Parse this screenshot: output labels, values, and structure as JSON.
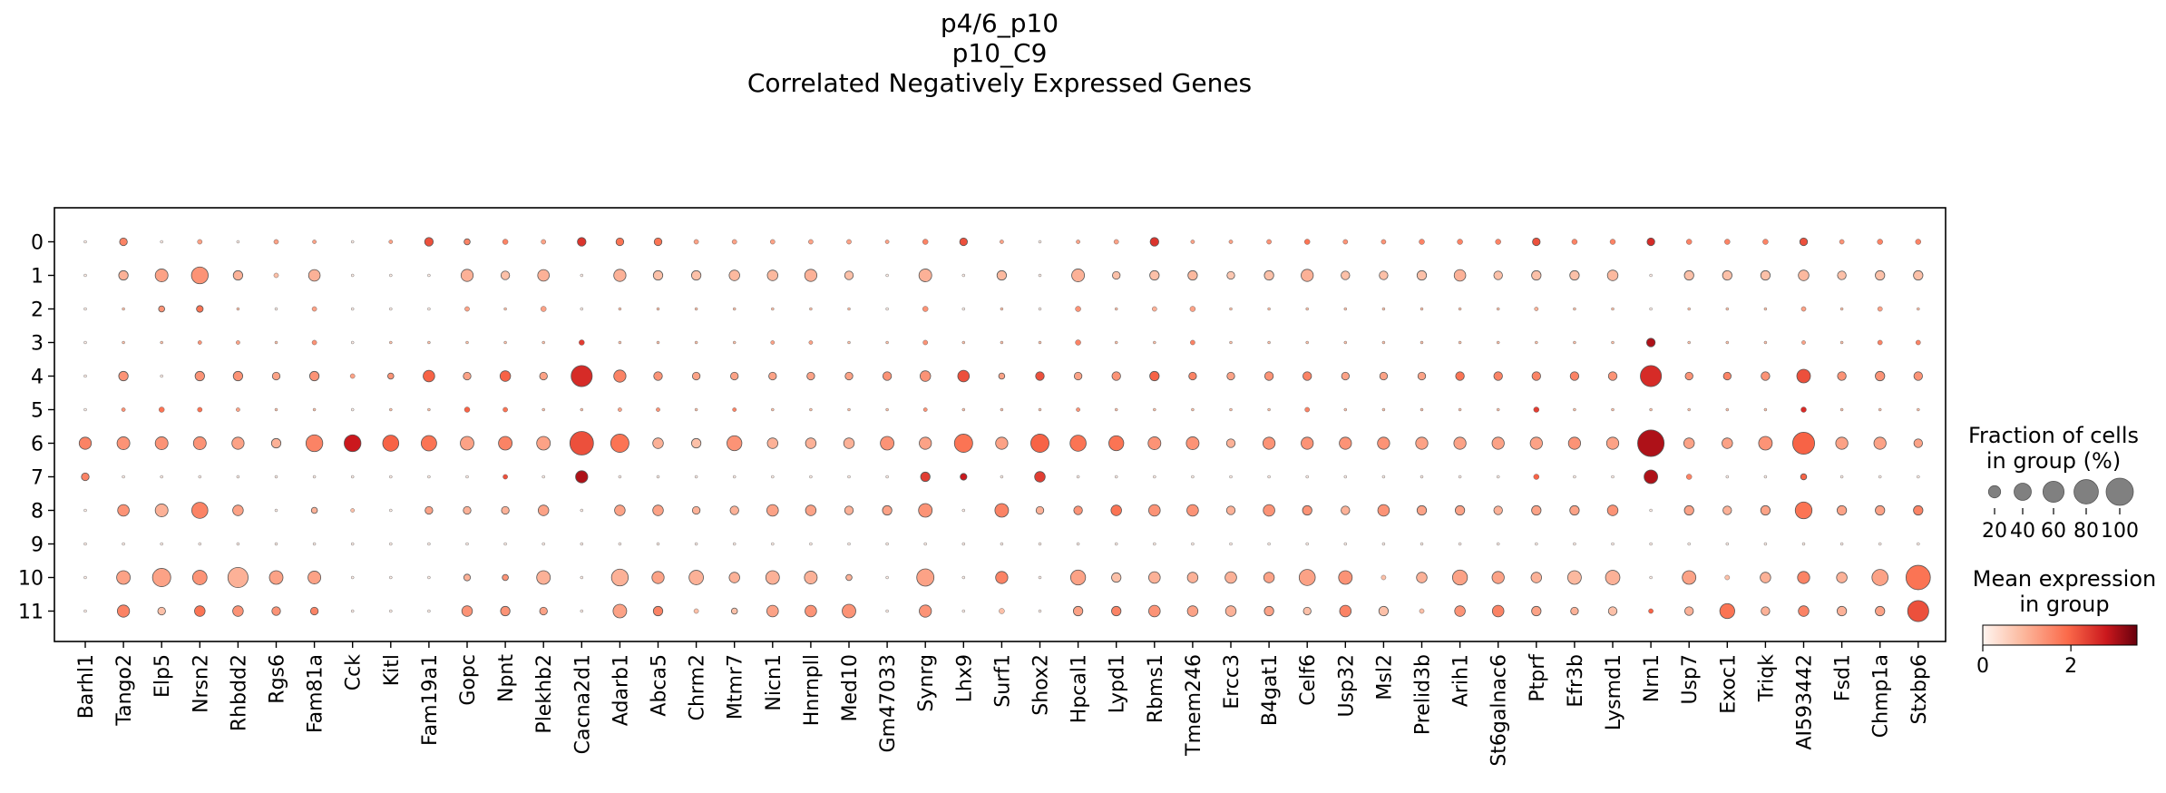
{
  "chart_data": {
    "type": "dotplot",
    "title": [
      "p4/6_p10",
      "p10_C9",
      "Correlated Negatively Expressed Genes"
    ],
    "genes": [
      "Barhl1",
      "Tango2",
      "Elp5",
      "Nrsn2",
      "Rhbdd2",
      "Rgs6",
      "Fam81a",
      "Cck",
      "Kitl",
      "Fam19a1",
      "Gopc",
      "Npnt",
      "Plekhb2",
      "Cacna2d1",
      "Adarb1",
      "Abca5",
      "Chrm2",
      "Mtmr7",
      "Nicn1",
      "Hnrnpll",
      "Med10",
      "Gm47033",
      "Synrg",
      "Lhx9",
      "Surf1",
      "Shox2",
      "Hpcal1",
      "Lypd1",
      "Rbms1",
      "Tmem246",
      "Ercc3",
      "B4gat1",
      "Celf6",
      "Usp32",
      "Msl2",
      "Prelid3b",
      "Arih1",
      "St6galnac6",
      "Ptprf",
      "Efr3b",
      "Lysmd1",
      "Nrn1",
      "Usp7",
      "Exoc1",
      "Triqk",
      "AI593442",
      "Fsd1",
      "Chmp1a",
      "Stxbp6"
    ],
    "groups": [
      "0",
      "1",
      "2",
      "3",
      "4",
      "5",
      "6",
      "7",
      "8",
      "9",
      "10",
      "11"
    ],
    "fraction_percent": [
      [
        1,
        8,
        1,
        3,
        1,
        3,
        2,
        1,
        2,
        10,
        5,
        4,
        3,
        10,
        8,
        8,
        3,
        3,
        3,
        3,
        3,
        2,
        4,
        8,
        2,
        1,
        2,
        3,
        10,
        2,
        2,
        3,
        4,
        3,
        3,
        4,
        4,
        4,
        8,
        4,
        4,
        8,
        4,
        4,
        4,
        8,
        3,
        4,
        4
      ],
      [
        1,
        12,
        22,
        38,
        12,
        3,
        18,
        1,
        1,
        1,
        20,
        10,
        18,
        1,
        20,
        12,
        12,
        15,
        15,
        20,
        10,
        1,
        22,
        1,
        12,
        1,
        22,
        8,
        12,
        12,
        8,
        12,
        20,
        10,
        10,
        12,
        18,
        10,
        12,
        12,
        15,
        1,
        12,
        12,
        12,
        15,
        10,
        12,
        12
      ],
      [
        1,
        1,
        5,
        6,
        1,
        1,
        3,
        1,
        1,
        1,
        3,
        1,
        4,
        1,
        1,
        1,
        1,
        1,
        1,
        1,
        1,
        1,
        4,
        1,
        1,
        1,
        4,
        1,
        3,
        4,
        1,
        1,
        1,
        1,
        1,
        1,
        1,
        1,
        2,
        1,
        1,
        1,
        1,
        1,
        1,
        3,
        1,
        3,
        1
      ],
      [
        1,
        1,
        1,
        2,
        2,
        1,
        3,
        1,
        1,
        1,
        1,
        1,
        1,
        4,
        1,
        1,
        1,
        1,
        2,
        2,
        1,
        1,
        3,
        1,
        1,
        1,
        4,
        1,
        1,
        3,
        1,
        1,
        1,
        1,
        1,
        1,
        1,
        1,
        1,
        1,
        1,
        10,
        1,
        1,
        1,
        2,
        1,
        3,
        3
      ],
      [
        1,
        12,
        1,
        12,
        12,
        8,
        12,
        3,
        5,
        18,
        8,
        15,
        8,
        60,
        20,
        10,
        8,
        8,
        8,
        8,
        8,
        10,
        15,
        18,
        5,
        10,
        8,
        10,
        12,
        8,
        8,
        10,
        10,
        8,
        8,
        8,
        10,
        10,
        10,
        10,
        10,
        60,
        8,
        8,
        10,
        25,
        10,
        12,
        10
      ],
      [
        1,
        2,
        4,
        3,
        2,
        1,
        1,
        1,
        1,
        1,
        4,
        3,
        1,
        1,
        2,
        2,
        1,
        2,
        1,
        1,
        1,
        1,
        2,
        1,
        1,
        1,
        2,
        1,
        1,
        1,
        1,
        1,
        3,
        1,
        1,
        1,
        1,
        1,
        4,
        1,
        1,
        1,
        1,
        1,
        1,
        4,
        1,
        1,
        1
      ],
      [
        20,
        22,
        22,
        22,
        20,
        12,
        38,
        38,
        35,
        32,
        25,
        25,
        25,
        75,
        45,
        15,
        12,
        30,
        15,
        15,
        15,
        25,
        20,
        45,
        20,
        45,
        35,
        30,
        22,
        22,
        10,
        20,
        20,
        20,
        20,
        20,
        20,
        20,
        20,
        20,
        20,
        95,
        15,
        15,
        25,
        65,
        20,
        20,
        10
      ],
      [
        8,
        1,
        1,
        1,
        1,
        1,
        1,
        1,
        1,
        1,
        1,
        3,
        1,
        20,
        1,
        1,
        1,
        1,
        1,
        1,
        1,
        1,
        12,
        6,
        1,
        15,
        1,
        1,
        1,
        1,
        1,
        1,
        1,
        1,
        1,
        1,
        1,
        1,
        4,
        1,
        1,
        25,
        4,
        1,
        1,
        5,
        1,
        1,
        1
      ],
      [
        1,
        18,
        22,
        35,
        15,
        1,
        5,
        2,
        1,
        8,
        8,
        8,
        15,
        1,
        15,
        15,
        8,
        10,
        18,
        15,
        10,
        12,
        25,
        1,
        25,
        8,
        10,
        15,
        18,
        18,
        10,
        18,
        12,
        10,
        18,
        12,
        12,
        10,
        12,
        12,
        15,
        1,
        12,
        10,
        12,
        38,
        12,
        12,
        12
      ],
      [
        1,
        1,
        1,
        1,
        1,
        1,
        1,
        1,
        1,
        1,
        1,
        1,
        1,
        1,
        1,
        1,
        1,
        1,
        1,
        1,
        1,
        1,
        1,
        1,
        1,
        1,
        1,
        1,
        1,
        1,
        1,
        1,
        1,
        1,
        1,
        1,
        1,
        1,
        1,
        1,
        1,
        1,
        1,
        1,
        1,
        1,
        1,
        1,
        1
      ],
      [
        1,
        25,
        45,
        28,
        55,
        25,
        22,
        1,
        1,
        1,
        6,
        5,
        25,
        1,
        38,
        20,
        28,
        15,
        25,
        22,
        5,
        1,
        40,
        1,
        20,
        1,
        30,
        12,
        18,
        15,
        18,
        15,
        35,
        25,
        3,
        15,
        30,
        20,
        15,
        25,
        28,
        1,
        25,
        3,
        15,
        20,
        15,
        35,
        80
      ],
      [
        1,
        20,
        8,
        15,
        15,
        10,
        8,
        1,
        1,
        1,
        15,
        12,
        8,
        1,
        25,
        12,
        3,
        5,
        18,
        18,
        25,
        1,
        20,
        1,
        4,
        1,
        12,
        12,
        18,
        15,
        15,
        12,
        8,
        18,
        12,
        3,
        15,
        18,
        12,
        8,
        10,
        3,
        10,
        30,
        10,
        15,
        12,
        12,
        60
      ]
    ],
    "mean_expression": [
      [
        0.1,
        1.6,
        0.1,
        1.2,
        0.1,
        1.2,
        1.2,
        0.1,
        1.2,
        2.2,
        1.6,
        1.6,
        1.2,
        2.5,
        1.8,
        1.8,
        1.2,
        1.2,
        1.2,
        1.2,
        1.2,
        1.2,
        1.6,
        2.2,
        1.2,
        0.1,
        1.2,
        1.2,
        2.5,
        1.2,
        1.2,
        1.4,
        1.8,
        1.4,
        1.4,
        1.6,
        1.6,
        1.6,
        2.2,
        1.6,
        1.6,
        2.6,
        1.6,
        1.6,
        1.6,
        2.2,
        1.4,
        1.6,
        1.6
      ],
      [
        0.1,
        1.0,
        1.2,
        1.4,
        1.0,
        0.8,
        1.0,
        0.1,
        0.1,
        0.1,
        1.0,
        0.8,
        1.0,
        0.1,
        1.0,
        0.8,
        0.8,
        0.9,
        0.9,
        1.0,
        0.8,
        0.1,
        1.0,
        0.1,
        0.9,
        0.1,
        1.0,
        0.8,
        0.8,
        0.9,
        0.7,
        0.8,
        1.0,
        0.8,
        0.8,
        0.8,
        1.0,
        0.8,
        0.8,
        0.8,
        0.9,
        0.1,
        0.8,
        0.8,
        0.8,
        0.9,
        0.8,
        0.8,
        0.8
      ],
      [
        0.1,
        0.8,
        1.4,
        1.8,
        0.8,
        0.1,
        1.2,
        0.1,
        0.1,
        0.1,
        1.2,
        0.8,
        1.2,
        0.1,
        0.8,
        0.8,
        0.8,
        0.8,
        0.8,
        0.8,
        0.8,
        0.1,
        1.4,
        0.1,
        0.8,
        0.1,
        1.4,
        0.8,
        1.0,
        1.2,
        0.8,
        0.8,
        0.8,
        0.8,
        0.8,
        0.8,
        0.8,
        0.8,
        1.0,
        0.8,
        0.8,
        0.1,
        0.8,
        0.8,
        0.8,
        1.2,
        0.8,
        1.2,
        0.8
      ],
      [
        0.1,
        0.8,
        0.8,
        1.4,
        1.2,
        0.8,
        1.4,
        0.1,
        0.8,
        0.8,
        0.8,
        0.8,
        0.8,
        2.4,
        0.8,
        0.8,
        0.8,
        0.8,
        1.2,
        1.2,
        0.8,
        0.8,
        1.4,
        0.8,
        0.8,
        0.8,
        1.6,
        0.8,
        0.8,
        1.6,
        0.8,
        0.8,
        0.8,
        0.8,
        0.8,
        0.8,
        0.8,
        0.8,
        0.8,
        0.8,
        0.8,
        3.0,
        0.8,
        0.8,
        0.8,
        1.2,
        0.8,
        1.6,
        1.6
      ],
      [
        0.1,
        1.4,
        0.1,
        1.4,
        1.4,
        1.2,
        1.4,
        1.2,
        1.4,
        2.0,
        1.2,
        2.0,
        1.2,
        2.6,
        1.6,
        1.4,
        1.2,
        1.2,
        1.2,
        1.2,
        1.2,
        1.4,
        1.4,
        2.2,
        1.2,
        2.2,
        1.2,
        1.4,
        2.0,
        1.6,
        1.2,
        1.4,
        1.6,
        1.2,
        1.2,
        1.2,
        1.8,
        1.6,
        1.6,
        1.6,
        1.4,
        2.6,
        1.4,
        1.6,
        1.4,
        2.2,
        1.4,
        1.4,
        1.4
      ],
      [
        0.1,
        1.4,
        1.8,
        1.8,
        1.2,
        0.8,
        0.8,
        0.1,
        0.8,
        0.8,
        2.0,
        1.8,
        0.8,
        0.8,
        1.2,
        1.4,
        0.8,
        1.6,
        0.8,
        0.8,
        0.8,
        0.8,
        1.4,
        0.8,
        0.8,
        0.8,
        1.4,
        0.8,
        0.8,
        0.8,
        0.8,
        0.8,
        1.6,
        0.8,
        0.8,
        0.8,
        0.8,
        0.8,
        2.4,
        0.8,
        0.8,
        0.8,
        0.8,
        0.8,
        0.8,
        2.6,
        0.8,
        0.8,
        0.8
      ],
      [
        1.6,
        1.4,
        1.4,
        1.4,
        1.2,
        1.0,
        1.6,
        2.8,
        2.0,
        1.8,
        1.2,
        1.6,
        1.2,
        2.2,
        1.8,
        1.0,
        0.8,
        1.4,
        1.0,
        1.0,
        1.0,
        1.4,
        1.2,
        1.8,
        1.2,
        2.0,
        1.8,
        1.8,
        1.4,
        1.4,
        1.0,
        1.4,
        1.4,
        1.4,
        1.4,
        1.2,
        1.2,
        1.2,
        1.2,
        1.4,
        1.2,
        3.0,
        1.2,
        1.2,
        1.4,
        2.0,
        1.2,
        1.2,
        1.2
      ],
      [
        1.6,
        0.1,
        0.1,
        0.1,
        0.1,
        0.1,
        0.1,
        0.1,
        0.1,
        0.1,
        0.1,
        2.2,
        0.1,
        3.0,
        0.1,
        0.1,
        0.1,
        0.1,
        0.1,
        0.1,
        0.1,
        0.1,
        2.4,
        2.8,
        0.1,
        2.4,
        0.1,
        0.1,
        0.1,
        0.1,
        0.1,
        0.1,
        0.1,
        0.1,
        0.1,
        0.1,
        0.1,
        0.1,
        2.0,
        0.1,
        0.1,
        3.0,
        1.6,
        0.1,
        0.1,
        2.0,
        0.1,
        0.1,
        0.1
      ],
      [
        0.1,
        1.4,
        1.0,
        1.6,
        1.2,
        0.1,
        1.0,
        0.8,
        0.1,
        1.2,
        1.0,
        1.0,
        1.2,
        0.1,
        1.2,
        1.2,
        1.0,
        1.0,
        1.2,
        1.2,
        1.0,
        1.2,
        1.4,
        0.1,
        1.6,
        1.0,
        1.4,
        1.8,
        1.4,
        1.4,
        1.0,
        1.4,
        1.4,
        1.0,
        1.4,
        1.2,
        1.2,
        1.0,
        1.2,
        1.2,
        1.4,
        0.1,
        1.2,
        1.0,
        1.2,
        1.8,
        1.2,
        1.2,
        1.6
      ],
      [
        0.1,
        0.1,
        0.1,
        0.1,
        0.1,
        0.1,
        0.1,
        0.1,
        0.1,
        0.1,
        0.1,
        0.1,
        0.1,
        0.1,
        0.1,
        0.1,
        0.1,
        0.1,
        0.1,
        0.1,
        0.1,
        0.1,
        0.1,
        0.1,
        0.1,
        0.1,
        0.1,
        0.1,
        0.1,
        0.1,
        0.1,
        0.1,
        0.1,
        0.1,
        0.1,
        0.1,
        0.1,
        0.1,
        0.1,
        0.1,
        0.1,
        0.1,
        0.1,
        0.1,
        0.1,
        0.1,
        0.1,
        0.1,
        0.1
      ],
      [
        0.1,
        1.2,
        1.2,
        1.4,
        1.0,
        1.2,
        1.2,
        0.1,
        0.1,
        0.1,
        1.0,
        1.4,
        1.0,
        0.1,
        1.0,
        1.2,
        1.0,
        1.0,
        1.0,
        1.0,
        1.0,
        0.1,
        1.2,
        0.1,
        1.6,
        0.1,
        1.2,
        0.8,
        1.0,
        1.0,
        1.0,
        1.2,
        1.2,
        1.4,
        0.8,
        1.0,
        1.2,
        1.2,
        1.0,
        0.9,
        1.0,
        0.1,
        1.2,
        0.8,
        1.0,
        1.6,
        1.0,
        1.2,
        1.8
      ],
      [
        0.1,
        1.6,
        0.8,
        1.8,
        1.4,
        1.4,
        1.6,
        0.1,
        0.1,
        0.1,
        1.4,
        1.4,
        1.2,
        0.1,
        1.2,
        1.6,
        0.8,
        0.8,
        1.2,
        1.4,
        1.4,
        0.1,
        1.4,
        0.1,
        0.8,
        0.1,
        1.2,
        1.6,
        1.4,
        1.2,
        1.0,
        1.2,
        0.8,
        1.6,
        0.8,
        0.8,
        1.4,
        1.6,
        1.2,
        1.0,
        0.8,
        2.0,
        1.0,
        1.8,
        1.0,
        1.6,
        1.0,
        1.2,
        2.2
      ]
    ],
    "size_legend": {
      "title": [
        "Fraction of cells",
        "in group (%)"
      ],
      "values": [
        20,
        40,
        60,
        80,
        100
      ],
      "labels": [
        "20",
        "40",
        "60",
        "80",
        "100"
      ]
    },
    "color_legend": {
      "title": [
        "Mean expression",
        "in group"
      ],
      "range": [
        0,
        3.5
      ],
      "ticks": [
        0,
        2
      ],
      "tick_labels": [
        "0",
        "2"
      ],
      "colormap": [
        "#fff5f0",
        "#fcbba1",
        "#fb6a4a",
        "#cb181d",
        "#67000d"
      ]
    },
    "dot_stroke_color": "#555555"
  }
}
